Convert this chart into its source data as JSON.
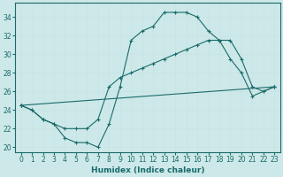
{
  "xlabel": "Humidex (Indice chaleur)",
  "bg_color": "#cde8e8",
  "grid_color": "#d4eded",
  "line_color": "#1a6b6b",
  "xlim": [
    -0.5,
    23.5
  ],
  "ylim": [
    19.5,
    35.5
  ],
  "xticks": [
    0,
    1,
    2,
    3,
    4,
    5,
    6,
    7,
    8,
    9,
    10,
    11,
    12,
    13,
    14,
    15,
    16,
    17,
    18,
    19,
    20,
    21,
    22,
    23
  ],
  "yticks": [
    20,
    22,
    24,
    26,
    28,
    30,
    32,
    34
  ],
  "line1_x": [
    0,
    1,
    2,
    3,
    4,
    5,
    6,
    7,
    8,
    9,
    10,
    11,
    12,
    13,
    14,
    15,
    16,
    17,
    18,
    19,
    20,
    21,
    22,
    23
  ],
  "line1_y": [
    24.5,
    24.0,
    23.0,
    22.5,
    21.0,
    20.5,
    20.5,
    20.0,
    22.5,
    26.5,
    31.5,
    32.5,
    33.0,
    34.5,
    34.5,
    34.5,
    34.0,
    32.5,
    31.5,
    29.5,
    28.0,
    25.5,
    26.0,
    26.5
  ],
  "line2_x": [
    0,
    1,
    2,
    3,
    4,
    5,
    6,
    7,
    8,
    9,
    10,
    11,
    12,
    13,
    14,
    15,
    16,
    17,
    18,
    19,
    20,
    21,
    22,
    23
  ],
  "line2_y": [
    24.5,
    24.0,
    23.0,
    22.5,
    22.0,
    22.0,
    22.0,
    23.0,
    26.5,
    27.5,
    28.0,
    28.5,
    29.0,
    29.5,
    30.0,
    30.5,
    31.0,
    31.5,
    31.5,
    31.5,
    29.5,
    26.5,
    26.0,
    26.5
  ],
  "line3_x": [
    0,
    23
  ],
  "line3_y": [
    24.5,
    26.5
  ]
}
